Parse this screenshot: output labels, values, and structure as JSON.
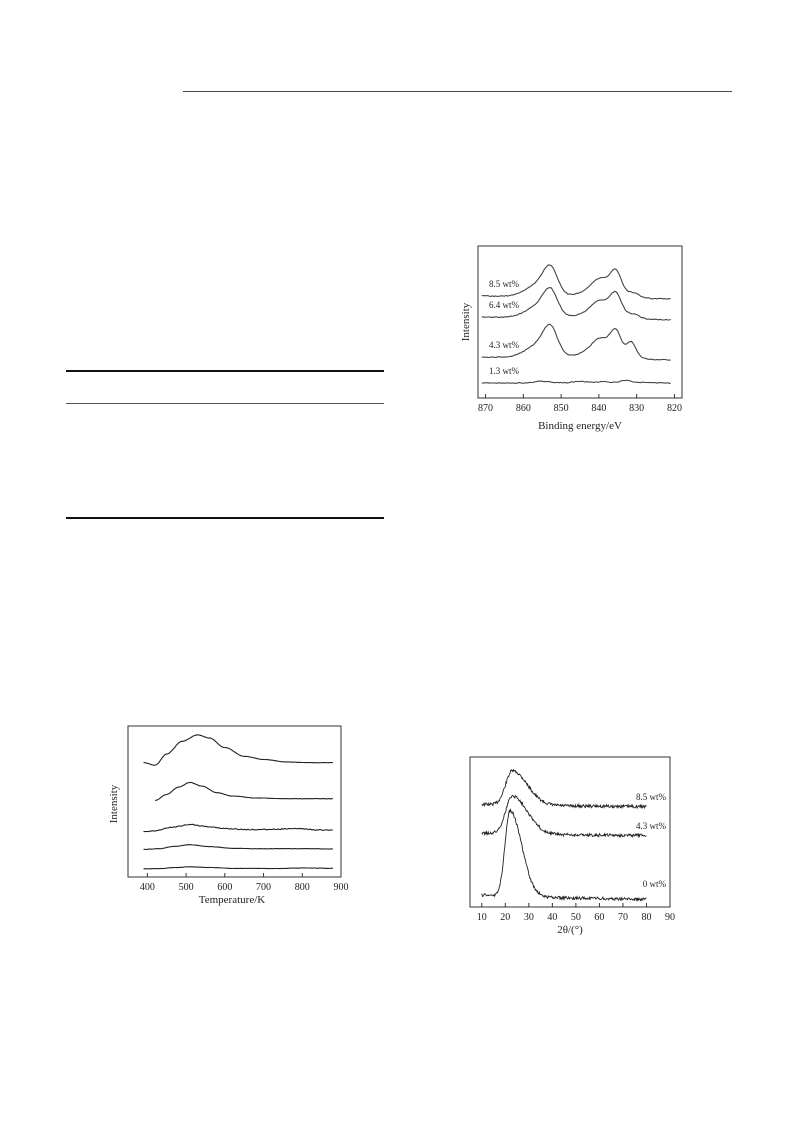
{
  "figures": [
    {
      "id": "tpd",
      "chart_data": {
        "type": "line",
        "xlabel": "Temperature/K",
        "ylabel": "Intensity",
        "xlim": [
          350,
          900
        ],
        "xticks": [
          "400",
          "500",
          "600",
          "700",
          "800",
          "900"
        ],
        "series": [
          {
            "offset": 4,
            "peak_x": 530,
            "peak_h": 0.95,
            "tail": 0.05,
            "points": [
              [
                390,
                0.08
              ],
              [
                420,
                0.0
              ],
              [
                450,
                0.35
              ],
              [
                490,
                0.75
              ],
              [
                530,
                0.95
              ],
              [
                560,
                0.85
              ],
              [
                600,
                0.55
              ],
              [
                650,
                0.28
              ],
              [
                700,
                0.18
              ],
              [
                760,
                0.1
              ],
              [
                820,
                0.08
              ],
              [
                880,
                0.08
              ]
            ]
          },
          {
            "offset": 3,
            "points": [
              [
                420,
                0.0
              ],
              [
                450,
                0.25
              ],
              [
                480,
                0.55
              ],
              [
                510,
                0.75
              ],
              [
                540,
                0.6
              ],
              [
                580,
                0.32
              ],
              [
                620,
                0.18
              ],
              [
                680,
                0.1
              ],
              [
                760,
                0.07
              ],
              [
                880,
                0.07
              ]
            ]
          },
          {
            "offset": 2,
            "points": [
              [
                390,
                0.0
              ],
              [
                420,
                0.05
              ],
              [
                460,
                0.25
              ],
              [
                510,
                0.4
              ],
              [
                550,
                0.3
              ],
              [
                600,
                0.18
              ],
              [
                660,
                0.12
              ],
              [
                720,
                0.14
              ],
              [
                790,
                0.18
              ],
              [
                840,
                0.1
              ],
              [
                880,
                0.1
              ]
            ]
          },
          {
            "offset": 1,
            "points": [
              [
                390,
                0.0
              ],
              [
                430,
                0.05
              ],
              [
                470,
                0.22
              ],
              [
                510,
                0.33
              ],
              [
                560,
                0.2
              ],
              [
                620,
                0.08
              ],
              [
                680,
                0.05
              ],
              [
                760,
                0.05
              ],
              [
                820,
                0.05
              ],
              [
                880,
                0.03
              ]
            ]
          },
          {
            "offset": 0,
            "points": [
              [
                390,
                0.02
              ],
              [
                430,
                0.04
              ],
              [
                470,
                0.14
              ],
              [
                510,
                0.22
              ],
              [
                560,
                0.15
              ],
              [
                620,
                0.06
              ],
              [
                680,
                0.06
              ],
              [
                740,
                0.05
              ],
              [
                800,
                0.1
              ],
              [
                850,
                0.08
              ],
              [
                880,
                0.06
              ]
            ]
          }
        ]
      }
    },
    {
      "id": "xps",
      "chart_data": {
        "type": "line",
        "xlabel": "Binding energy/eV",
        "ylabel": "Intensity",
        "xlim": [
          872,
          818
        ],
        "xticks": [
          "870",
          "860",
          "850",
          "840",
          "830",
          "820"
        ],
        "series": [
          {
            "name": "8.5 wt%",
            "label": "8.5 wt%",
            "level": 3,
            "amp": 1.0
          },
          {
            "name": "6.4 wt%",
            "label": "6.4 wt%",
            "level": 2,
            "amp": 0.95
          },
          {
            "name": "4.3 wt%",
            "label": "4.3 wt%",
            "level": 1,
            "amp": 1.05
          },
          {
            "name": "1.3 wt%",
            "label": "1.3 wt%",
            "level": 0,
            "amp": 0.22
          }
        ]
      }
    },
    {
      "id": "xrd",
      "chart_data": {
        "type": "line",
        "xlabel": "2θ/(°)",
        "ylabel": "",
        "xlim": [
          5,
          90
        ],
        "xticks": [
          "10",
          "20",
          "30",
          "40",
          "50",
          "60",
          "70",
          "80",
          "90"
        ],
        "series": [
          {
            "name": "8.5 wt%",
            "label": "8.5 wt%",
            "level": 2,
            "amp": 0.55,
            "base": 0.0
          },
          {
            "name": "4.3 wt%",
            "label": "4.3 wt%",
            "level": 1,
            "amp": 0.6,
            "base": 0.0
          },
          {
            "name": "0 wt%",
            "label": "0 wt%",
            "level": 0,
            "amp": 1.0,
            "base": 0.0
          }
        ]
      }
    }
  ]
}
